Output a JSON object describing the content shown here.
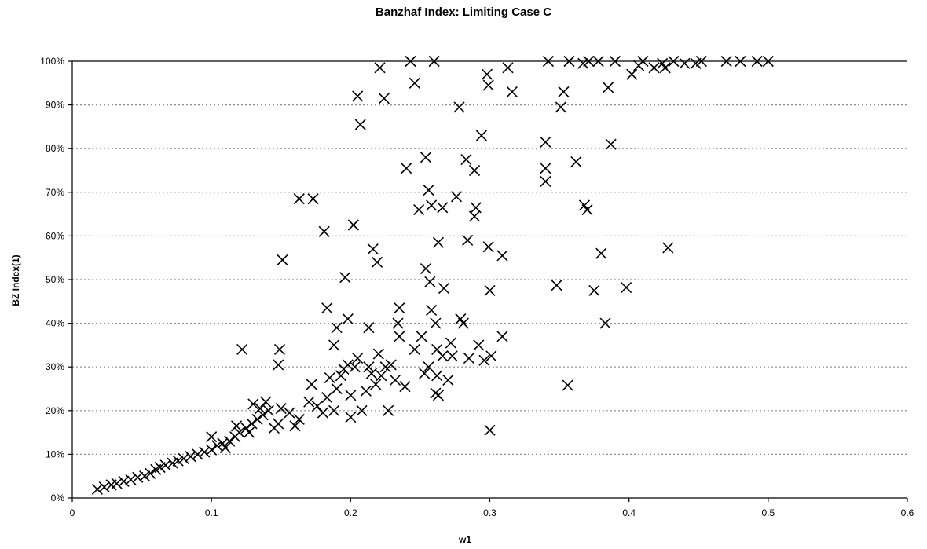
{
  "chart_data": {
    "type": "scatter",
    "title": "Banzhaf Index: Limiting Case C",
    "xlabel": "w1",
    "ylabel": "BZ Index(1)",
    "xlim": [
      0,
      0.6
    ],
    "ylim": [
      0,
      1
    ],
    "x_ticks": [
      "0",
      "0.1",
      "0.2",
      "0.3",
      "0.4",
      "0.5",
      "0.6"
    ],
    "y_ticks": [
      "0%",
      "10%",
      "20%",
      "30%",
      "40%",
      "50%",
      "60%",
      "70%",
      "80%",
      "90%",
      "100%"
    ],
    "grid": "horizontal-dotted",
    "legend": "none",
    "marker": "x",
    "series": [
      {
        "points": [
          [
            0.018,
            0.02
          ],
          [
            0.023,
            0.025
          ],
          [
            0.028,
            0.03
          ],
          [
            0.032,
            0.033
          ],
          [
            0.037,
            0.038
          ],
          [
            0.042,
            0.042
          ],
          [
            0.047,
            0.047
          ],
          [
            0.052,
            0.05
          ],
          [
            0.056,
            0.056
          ],
          [
            0.06,
            0.065
          ],
          [
            0.063,
            0.07
          ],
          [
            0.067,
            0.075
          ],
          [
            0.072,
            0.08
          ],
          [
            0.076,
            0.085
          ],
          [
            0.08,
            0.09
          ],
          [
            0.085,
            0.095
          ],
          [
            0.09,
            0.1
          ],
          [
            0.095,
            0.105
          ],
          [
            0.1,
            0.11
          ],
          [
            0.104,
            0.12
          ],
          [
            0.108,
            0.125
          ],
          [
            0.113,
            0.13
          ],
          [
            0.117,
            0.14
          ],
          [
            0.12,
            0.15
          ],
          [
            0.125,
            0.16
          ],
          [
            0.129,
            0.17
          ],
          [
            0.133,
            0.18
          ],
          [
            0.137,
            0.19
          ],
          [
            0.141,
            0.2
          ],
          [
            0.11,
            0.115
          ],
          [
            0.1,
            0.14
          ],
          [
            0.118,
            0.165
          ],
          [
            0.127,
            0.15
          ],
          [
            0.135,
            0.205
          ],
          [
            0.139,
            0.22
          ],
          [
            0.13,
            0.215
          ],
          [
            0.122,
            0.34
          ],
          [
            0.145,
            0.16
          ],
          [
            0.148,
            0.17
          ],
          [
            0.15,
            0.205
          ],
          [
            0.156,
            0.195
          ],
          [
            0.16,
            0.165
          ],
          [
            0.163,
            0.18
          ],
          [
            0.17,
            0.22
          ],
          [
            0.172,
            0.26
          ],
          [
            0.176,
            0.21
          ],
          [
            0.18,
            0.195
          ],
          [
            0.183,
            0.23
          ],
          [
            0.185,
            0.275
          ],
          [
            0.188,
            0.2
          ],
          [
            0.19,
            0.25
          ],
          [
            0.193,
            0.28
          ],
          [
            0.195,
            0.295
          ],
          [
            0.198,
            0.305
          ],
          [
            0.2,
            0.235
          ],
          [
            0.2,
            0.185
          ],
          [
            0.203,
            0.3
          ],
          [
            0.205,
            0.32
          ],
          [
            0.208,
            0.2
          ],
          [
            0.211,
            0.245
          ],
          [
            0.213,
            0.3
          ],
          [
            0.215,
            0.285
          ],
          [
            0.218,
            0.26
          ],
          [
            0.22,
            0.33
          ],
          [
            0.222,
            0.28
          ],
          [
            0.225,
            0.3
          ],
          [
            0.227,
            0.2
          ],
          [
            0.229,
            0.305
          ],
          [
            0.232,
            0.27
          ],
          [
            0.148,
            0.305
          ],
          [
            0.149,
            0.34
          ],
          [
            0.151,
            0.545
          ],
          [
            0.163,
            0.685
          ],
          [
            0.173,
            0.685
          ],
          [
            0.181,
            0.61
          ],
          [
            0.183,
            0.435
          ],
          [
            0.188,
            0.35
          ],
          [
            0.19,
            0.39
          ],
          [
            0.196,
            0.505
          ],
          [
            0.198,
            0.41
          ],
          [
            0.202,
            0.625
          ],
          [
            0.205,
            0.92
          ],
          [
            0.207,
            0.855
          ],
          [
            0.213,
            0.39
          ],
          [
            0.216,
            0.57
          ],
          [
            0.219,
            0.54
          ],
          [
            0.221,
            0.985
          ],
          [
            0.224,
            0.915
          ],
          [
            0.234,
            0.4
          ],
          [
            0.235,
            0.435
          ],
          [
            0.235,
            0.37
          ],
          [
            0.239,
            0.255
          ],
          [
            0.24,
            0.755
          ],
          [
            0.243,
            1.0
          ],
          [
            0.246,
            0.95
          ],
          [
            0.246,
            0.34
          ],
          [
            0.249,
            0.66
          ],
          [
            0.251,
            0.37
          ],
          [
            0.253,
            0.285
          ],
          [
            0.254,
            0.78
          ],
          [
            0.254,
            0.525
          ],
          [
            0.256,
            0.3
          ],
          [
            0.256,
            0.705
          ],
          [
            0.257,
            0.495
          ],
          [
            0.258,
            0.43
          ],
          [
            0.258,
            0.67
          ],
          [
            0.26,
            1.0
          ],
          [
            0.261,
            0.24
          ],
          [
            0.261,
            0.4
          ],
          [
            0.262,
            0.28
          ],
          [
            0.262,
            0.34
          ],
          [
            0.263,
            0.235
          ],
          [
            0.263,
            0.585
          ],
          [
            0.266,
            0.325
          ],
          [
            0.266,
            0.665
          ],
          [
            0.267,
            0.48
          ],
          [
            0.27,
            0.27
          ],
          [
            0.272,
            0.355
          ],
          [
            0.273,
            0.325
          ],
          [
            0.276,
            0.69
          ],
          [
            0.278,
            0.895
          ],
          [
            0.279,
            0.41
          ],
          [
            0.281,
            0.4
          ],
          [
            0.283,
            0.775
          ],
          [
            0.284,
            0.59
          ],
          [
            0.285,
            0.32
          ],
          [
            0.289,
            0.645
          ],
          [
            0.289,
            0.75
          ],
          [
            0.29,
            0.665
          ],
          [
            0.292,
            0.35
          ],
          [
            0.294,
            0.83
          ],
          [
            0.296,
            0.315
          ],
          [
            0.298,
            0.97
          ],
          [
            0.299,
            0.945
          ],
          [
            0.299,
            0.575
          ],
          [
            0.3,
            0.475
          ],
          [
            0.3,
            0.155
          ],
          [
            0.301,
            0.325
          ],
          [
            0.309,
            0.37
          ],
          [
            0.309,
            0.555
          ],
          [
            0.313,
            0.985
          ],
          [
            0.316,
            0.93
          ],
          [
            0.34,
            0.815
          ],
          [
            0.34,
            0.755
          ],
          [
            0.34,
            0.725
          ],
          [
            0.342,
            1.0
          ],
          [
            0.348,
            0.487
          ],
          [
            0.351,
            0.895
          ],
          [
            0.353,
            0.93
          ],
          [
            0.356,
            0.258
          ],
          [
            0.357,
            1.0
          ],
          [
            0.362,
            0.77
          ],
          [
            0.367,
            0.995
          ],
          [
            0.368,
            0.67
          ],
          [
            0.37,
            0.66
          ],
          [
            0.371,
            1.0
          ],
          [
            0.375,
            0.475
          ],
          [
            0.378,
            1.0
          ],
          [
            0.38,
            0.56
          ],
          [
            0.383,
            0.4
          ],
          [
            0.385,
            0.94
          ],
          [
            0.387,
            0.81
          ],
          [
            0.39,
            1.0
          ],
          [
            0.398,
            0.482
          ],
          [
            0.402,
            0.97
          ],
          [
            0.407,
            0.99
          ],
          [
            0.41,
            1.0
          ],
          [
            0.418,
            0.985
          ],
          [
            0.424,
            0.995
          ],
          [
            0.426,
            0.985
          ],
          [
            0.428,
            0.573
          ],
          [
            0.432,
            1.0
          ],
          [
            0.44,
            0.995
          ],
          [
            0.448,
            0.995
          ],
          [
            0.452,
            1.0
          ],
          [
            0.47,
            1.0
          ],
          [
            0.48,
            1.0
          ],
          [
            0.492,
            1.0
          ],
          [
            0.5,
            1.0
          ]
        ]
      }
    ]
  }
}
